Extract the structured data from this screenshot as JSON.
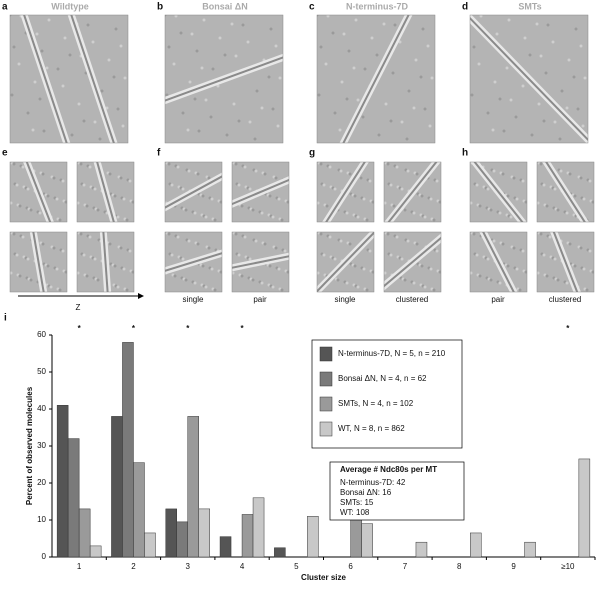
{
  "panels": [
    {
      "letter": "a",
      "title": "Wildtype"
    },
    {
      "letter": "b",
      "title": "Bonsai ΔN"
    },
    {
      "letter": "c",
      "title": "N-terminus-7D"
    },
    {
      "letter": "d",
      "title": "SMTs"
    }
  ],
  "detail_panels": [
    {
      "letter": "e"
    },
    {
      "letter": "f",
      "captions": [
        "single",
        "pair"
      ]
    },
    {
      "letter": "g",
      "captions": [
        "single",
        "clustered"
      ]
    },
    {
      "letter": "h",
      "captions": [
        "pair",
        "clustered"
      ]
    }
  ],
  "axis_label": "Z",
  "chart_data": {
    "type": "bar",
    "panel_letter": "i",
    "xlabel": "Cluster size",
    "ylabel": "Percent of observed molecules",
    "categories": [
      "1",
      "2",
      "3",
      "4",
      "5",
      "6",
      "7",
      "8",
      "9",
      "≥10"
    ],
    "series": [
      {
        "name": "N-terminus-7D, N = 5, n = 210",
        "color": "#555555",
        "values": [
          41,
          38,
          13,
          5.5,
          2.5,
          0,
          0,
          0,
          0,
          0
        ]
      },
      {
        "name": "Bonsai ΔN, N = 4, n = 62",
        "color": "#7a7a7a",
        "values": [
          32,
          58,
          9.5,
          0,
          0,
          0,
          0,
          0,
          0,
          0
        ]
      },
      {
        "name": "SMTs, N = 4, n = 102",
        "color": "#9a9a9a",
        "values": [
          13,
          25.5,
          38,
          11.5,
          0,
          11.5,
          0,
          0,
          0,
          0
        ]
      },
      {
        "name": "WT, N = 8, n = 862",
        "color": "#c8c8c8",
        "values": [
          3,
          6.5,
          13,
          16,
          11,
          9,
          4,
          6.5,
          4,
          26.5
        ]
      }
    ],
    "ylim": [
      0,
      60
    ],
    "yticks": [
      0,
      10,
      20,
      30,
      40,
      50,
      60
    ],
    "markers": {
      "text": "*",
      "categories": [
        "1",
        "2",
        "3",
        "4",
        "≥10"
      ],
      "colors": [
        "#777777",
        "#8a8a8a",
        "#8a8a8a",
        "#bdbdbd",
        "#bdbdbd"
      ]
    },
    "inset": {
      "title": "Average # Ndc80s per MT",
      "lines": [
        "N-terminus-7D: 42",
        "Bonsai ΔN: 16",
        "SMTs: 15",
        "WT: 108"
      ]
    }
  }
}
